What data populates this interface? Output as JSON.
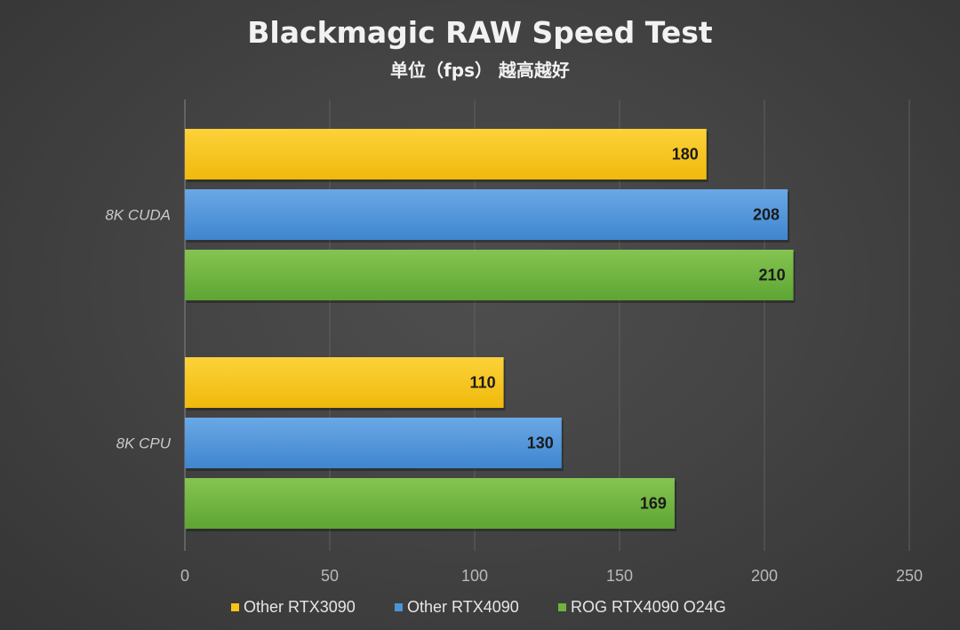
{
  "chart_data": {
    "type": "bar",
    "orientation": "horizontal",
    "title": "Blackmagic RAW Speed Test",
    "subtitle": "单位（fps） 越高越好",
    "xlabel": "",
    "ylabel": "",
    "categories": [
      "8K CUDA",
      "8K CPU"
    ],
    "series": [
      {
        "name": "Other RTX3090",
        "color": "#f5c518",
        "values": [
          180,
          110
        ]
      },
      {
        "name": "Other RTX4090",
        "color": "#4c94d8",
        "values": [
          208,
          130
        ]
      },
      {
        "name": "ROG RTX4090 O24G",
        "color": "#6fb33e",
        "values": [
          210,
          169
        ]
      }
    ],
    "xlim": [
      0,
      250
    ],
    "xticks": [
      0,
      50,
      100,
      150,
      200,
      250
    ],
    "grid": true,
    "data_labels": true,
    "legend": "bottom"
  }
}
